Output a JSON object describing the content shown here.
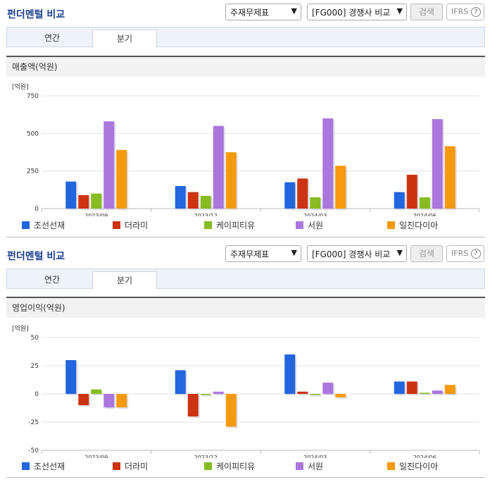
{
  "sections": [
    {
      "title": "펀더멘털 비교",
      "select_statement": "주재무제표",
      "select_group": "[FG000] 경쟁사 비교",
      "search_label": "검색",
      "ifrs_label": "IFRS",
      "tabs": [
        "연간",
        "분기"
      ],
      "active_tab": "분기",
      "metric_title": "매출액(억원)"
    },
    {
      "title": "펀더멘털 비교",
      "select_statement": "주재무제표",
      "select_group": "[FG000] 경쟁사 비교",
      "search_label": "검색",
      "ifrs_label": "IFRS",
      "tabs": [
        "연간",
        "분기"
      ],
      "active_tab": "분기",
      "metric_title": "영업이익(억원)"
    }
  ],
  "chart_data": [
    {
      "type": "bar",
      "title": "매출액(억원)",
      "ylabel": "[억원]",
      "categories": [
        "2023/09",
        "2023/12",
        "2024/03",
        "2024/06"
      ],
      "ylim": [
        0,
        750
      ],
      "yticks": [
        0,
        250,
        500,
        750
      ],
      "tick_labels": [
        "0",
        "250",
        "500",
        "750"
      ],
      "series": [
        {
          "name": "조선선재",
          "color": "#2266dd",
          "values": [
            180,
            150,
            175,
            110
          ]
        },
        {
          "name": "더라미",
          "color": "#cc3311",
          "values": [
            90,
            110,
            200,
            225
          ]
        },
        {
          "name": "케이피티유",
          "color": "#88bb22",
          "values": [
            100,
            85,
            75,
            75
          ]
        },
        {
          "name": "서원",
          "color": "#aa77dd",
          "values": [
            580,
            550,
            600,
            595
          ]
        },
        {
          "name": "일진다이아",
          "color": "#f59a0c",
          "values": [
            390,
            375,
            285,
            415
          ]
        }
      ]
    },
    {
      "type": "bar",
      "title": "영업이익(억원)",
      "ylabel": "[억원]",
      "categories": [
        "2023/09",
        "2023/12",
        "2024/03",
        "2024/06"
      ],
      "ylim": [
        -50,
        50
      ],
      "yticks": [
        -50,
        -25,
        0,
        25,
        50
      ],
      "tick_labels": [
        "-50",
        "-25",
        "0",
        "25",
        "50"
      ],
      "series": [
        {
          "name": "조선선재",
          "color": "#2266dd",
          "values": [
            30,
            21,
            35,
            11
          ]
        },
        {
          "name": "더라미",
          "color": "#cc3311",
          "values": [
            -10,
            -20,
            2,
            11
          ]
        },
        {
          "name": "케이피티유",
          "color": "#88bb22",
          "values": [
            4,
            -1,
            -1,
            1
          ]
        },
        {
          "name": "서원",
          "color": "#aa77dd",
          "values": [
            -12,
            2,
            10,
            3
          ]
        },
        {
          "name": "일진다이아",
          "color": "#f59a0c",
          "values": [
            -12,
            -29,
            -3,
            8
          ]
        }
      ]
    }
  ]
}
